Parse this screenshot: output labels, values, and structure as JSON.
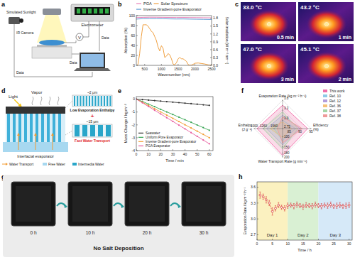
{
  "panel_labels": [
    "a",
    "b",
    "c",
    "d",
    "e",
    "f",
    "g",
    "h"
  ],
  "diagrams": {
    "a": {
      "sunlight": "Simulated Sunlight",
      "camera": "IR Camera",
      "meter": "Electrometer",
      "voltage": "V",
      "links": [
        "Data",
        "Data",
        "Data"
      ]
    },
    "c": {
      "images": [
        {
          "temperature": "33.0 °C",
          "time": "0.5 min"
        },
        {
          "temperature": "43.2 °C",
          "time": "1 min"
        },
        {
          "temperature": "47.0 °C",
          "time": "3 min"
        },
        {
          "temperature": "45.1 °C",
          "time": "2 min"
        }
      ]
    },
    "d": {
      "light": "Light",
      "vapor": "Vapor",
      "small_pore": "~2 μm",
      "enthalpy": "Low Evaporation Enthalpy",
      "plus": "+",
      "large_pore": "~15 μm",
      "transport": "Fast Water Transport",
      "evaporator": "Interfacial evaporator",
      "key_items": [
        "Water Transport",
        "Free Water",
        "Intermedia Water"
      ]
    },
    "g": {
      "frames": [
        "0 h",
        "10 h",
        "20 h",
        "30 h"
      ],
      "note": "No Salt Deposition"
    }
  },
  "chart_data": [
    {
      "type": "line",
      "x_label": "Wavenumber (nm)",
      "y_label": "Absorption (%)",
      "y2_label": "Solar irradiation (W m⁻² nm⁻¹)",
      "xlim": [
        250,
        2500
      ],
      "xticks": [
        500,
        1000,
        1500,
        2000,
        2500
      ],
      "ylim": [
        0,
        100
      ],
      "yticks": [
        0,
        20,
        40,
        60,
        80,
        100
      ],
      "y2lim": [
        0,
        1.9
      ],
      "y2ticks": [
        {
          "value": 0,
          "label": "0.0"
        },
        0.3,
        0.6,
        0.9,
        1.2,
        1.5,
        1.8
      ],
      "legend": "top",
      "series": [
        {
          "name": "PGA",
          "color": "#e87fb8",
          "x": [
            250,
            450,
            650,
            850,
            1050,
            1250,
            1450,
            1650,
            1850,
            2050,
            2250,
            2500
          ],
          "values": [
            96,
            96.5,
            96.8,
            96.7,
            96.5,
            96.4,
            96.2,
            96.3,
            96.1,
            96,
            95.8,
            95.6
          ]
        },
        {
          "name": "Inverse Gradient-pore Evaporator",
          "color": "#5b9bd5",
          "x": [
            250,
            450,
            650,
            850,
            1050,
            1250,
            1450,
            1650,
            1850,
            2050,
            2250,
            2500
          ],
          "values": [
            93,
            93.8,
            94,
            93.9,
            93.7,
            93.4,
            93.2,
            93.3,
            93,
            92.8,
            92.6,
            92.3
          ]
        },
        {
          "name": "Solar Spectrum",
          "color": "#f0a040",
          "axis": "y2",
          "x": [
            280,
            300,
            350,
            400,
            450,
            500,
            550,
            600,
            650,
            700,
            750,
            800,
            850,
            900,
            950,
            1000,
            1050,
            1100,
            1150,
            1200,
            1250,
            1300,
            1350,
            1400,
            1450,
            1500,
            1550,
            1600,
            1650,
            1700,
            1750,
            1800,
            1850,
            1900,
            1950,
            2000,
            2100,
            2200,
            2300,
            2400,
            2500
          ],
          "values": [
            0,
            0.05,
            0.45,
            1.1,
            1.55,
            1.55,
            1.55,
            1.5,
            1.4,
            1.3,
            1.25,
            1.1,
            0.95,
            0.7,
            0.55,
            0.75,
            0.65,
            0.3,
            0.35,
            0.45,
            0.4,
            0.25,
            0.05,
            0.02,
            0.1,
            0.25,
            0.3,
            0.25,
            0.25,
            0.2,
            0.15,
            0.03,
            0,
            0.01,
            0.04,
            0.08,
            0.09,
            0.07,
            0.05,
            0.02,
            0
          ]
        }
      ]
    },
    {
      "type": "line",
      "x_label": "Time / min",
      "y_label": "Mass Change / kg m⁻²",
      "xlim": [
        0,
        63
      ],
      "xticks": [
        0,
        10,
        20,
        30,
        40,
        50,
        60
      ],
      "ylim": [
        -4,
        0.2
      ],
      "yticks": [
        0,
        -1,
        -2,
        -3,
        -4
      ],
      "legend": "lower left",
      "x": [
        0,
        5,
        10,
        15,
        20,
        25,
        30,
        35,
        40,
        45,
        50,
        55,
        60
      ],
      "series": [
        {
          "name": "Seawater",
          "color": "#333333",
          "marker": "circle",
          "values": [
            0,
            -0.03,
            -0.07,
            -0.11,
            -0.15,
            -0.19,
            -0.23,
            -0.27,
            -0.31,
            -0.35,
            -0.39,
            -0.44,
            -0.48
          ]
        },
        {
          "name": "Uniform Pore Evaporator",
          "color": "#3aa655",
          "marker": "circle",
          "values": [
            0,
            -0.18,
            -0.38,
            -0.58,
            -0.79,
            -0.99,
            -1.19,
            -1.4,
            -1.6,
            -1.8,
            -2.01,
            -2.21,
            -2.42
          ]
        },
        {
          "name": "Inverse Gradient-pore Evaporator",
          "color": "#f39c32",
          "marker": "circle",
          "values": [
            0,
            -0.24,
            -0.49,
            -0.74,
            -0.99,
            -1.24,
            -1.49,
            -1.74,
            -1.99,
            -2.24,
            -2.49,
            -2.74,
            -3
          ]
        },
        {
          "name": "PGA Evaporator",
          "color": "#e85d9f",
          "marker": "circle",
          "values": [
            0,
            -0.28,
            -0.57,
            -0.86,
            -1.15,
            -1.44,
            -1.73,
            -2.02,
            -2.31,
            -2.6,
            -2.89,
            -3.18,
            -3.47
          ]
        }
      ]
    },
    {
      "type": "radar",
      "legend": "upper right",
      "axes": [
        {
          "label": "Evaporation Rate (kg m⁻² h⁻¹)",
          "lim": [
            2.75,
            3.6
          ],
          "ticks": [
            2.75,
            {
              "value": 3,
              "label": "3.0"
            },
            3.3,
            3.6
          ]
        },
        {
          "label": "Efficiency (%)",
          "lim": [
            82,
            95
          ],
          "ticks": [
            85,
            90,
            95
          ]
        },
        {
          "label": "Water Transport Rate (g min⁻¹)",
          "lim": [
            60,
            200
          ],
          "ticks": [
            100,
            150,
            180,
            200
          ]
        },
        {
          "label": "Enthalpy (J g⁻¹)",
          "lim": [
            1800,
            1000
          ],
          "ticks": [
            1560,
            1260,
            1000
          ]
        }
      ],
      "series": [
        {
          "name": "This work",
          "color": "#f06ea9",
          "values": [
            3.45,
            93.5,
            192,
            1080
          ]
        },
        {
          "name": "Ref. 10",
          "color": "#8ecae6",
          "values": [
            3,
            88,
            120,
            1560
          ]
        },
        {
          "name": "Ref. 12",
          "color": "#b39ddb",
          "values": [
            3.15,
            90,
            140,
            1350
          ]
        },
        {
          "name": "Ref. 36",
          "color": "#f6c177",
          "values": [
            2.95,
            86,
            105,
            1450
          ]
        },
        {
          "name": "Ref. 37",
          "color": "#a5d6a7",
          "values": [
            3.25,
            89,
            160,
            1250
          ]
        },
        {
          "name": "Ref. 38",
          "color": "#ef9a9a",
          "values": [
            3.1,
            91,
            130,
            1650
          ]
        }
      ]
    },
    {
      "type": "line",
      "marker": "circle",
      "line_style": "dashed",
      "color": "#d62728",
      "x_label": "Time / h",
      "y_label": "Evaporation Rate / kg m⁻² h⁻¹",
      "xlim": [
        0,
        31
      ],
      "xticks": [
        0,
        5,
        10,
        15,
        20,
        25,
        30
      ],
      "ylim": [
        2.6,
        3.7
      ],
      "yticks": [
        2.7,
        {
          "value": 3,
          "label": "3.0"
        },
        3.3,
        3.6
      ],
      "x": [
        1,
        2,
        3,
        4,
        5,
        6,
        7,
        8,
        9,
        10,
        11,
        12,
        13,
        14,
        15,
        16,
        17,
        18,
        19,
        20,
        21,
        22,
        23,
        24,
        25,
        26,
        27,
        28,
        29,
        30
      ],
      "values": [
        3.45,
        3.42,
        3.36,
        3.3,
        3.14,
        3.2,
        3.26,
        3.22,
        3.2,
        3.25,
        3.26,
        3.24,
        3.27,
        3.25,
        3.23,
        3.26,
        3.25,
        3.24,
        3.27,
        3.25,
        3.24,
        3.26,
        3.25,
        3.27,
        3.24,
        3.25,
        3.26,
        3.24,
        3.25,
        3.26
      ],
      "errors": [
        0.06,
        0.05,
        0.06,
        0.05,
        0.07,
        0.05,
        0.05,
        0.04,
        0.05,
        0.05,
        0.04,
        0.05,
        0.05,
        0.04,
        0.05,
        0.05,
        0.04,
        0.05,
        0.05,
        0.04,
        0.05,
        0.04,
        0.05,
        0.05,
        0.04,
        0.05,
        0.05,
        0.04,
        0.05,
        0.05
      ],
      "bands": [
        {
          "label": "Day 1",
          "from": 0,
          "to": 10,
          "color": "#fbf1c0"
        },
        {
          "label": "Day 2",
          "from": 10,
          "to": 20,
          "color": "#d9f0d3"
        },
        {
          "label": "Day 3",
          "from": 20,
          "to": 31,
          "color": "#d6e9f8"
        }
      ]
    }
  ]
}
